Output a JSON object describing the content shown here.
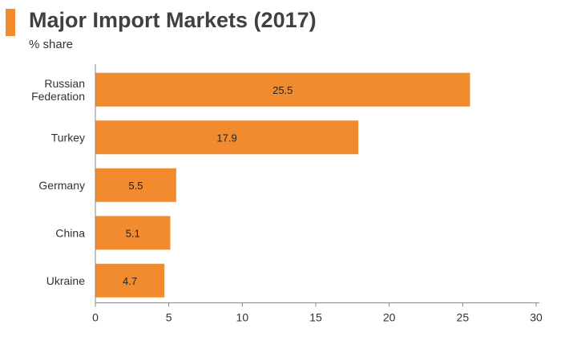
{
  "header": {
    "title": "Major Import Markets (2017)",
    "subtitle": "% share"
  },
  "colors": {
    "accent": "#f28a2e",
    "bar": "#f28a2e",
    "axis": "#888888",
    "text": "#333333"
  },
  "chart_data": {
    "type": "bar",
    "orientation": "horizontal",
    "title": "Major Import Markets (2017)",
    "subtitle": "% share",
    "categories": [
      "Russian Federation",
      "Turkey",
      "Germany",
      "China",
      "Ukraine"
    ],
    "category_lines": [
      [
        "Russian",
        "Federation"
      ],
      [
        "Turkey"
      ],
      [
        "Germany"
      ],
      [
        "China"
      ],
      [
        "Ukraine"
      ]
    ],
    "values": [
      25.5,
      17.9,
      5.5,
      5.1,
      4.7
    ],
    "value_labels": [
      "25.5",
      "17.9",
      "5.5",
      "5.1",
      "4.7"
    ],
    "xlim": [
      0,
      30
    ],
    "x_ticks": [
      0,
      5,
      10,
      15,
      20,
      25,
      30
    ],
    "grid": false,
    "legend": "none"
  }
}
